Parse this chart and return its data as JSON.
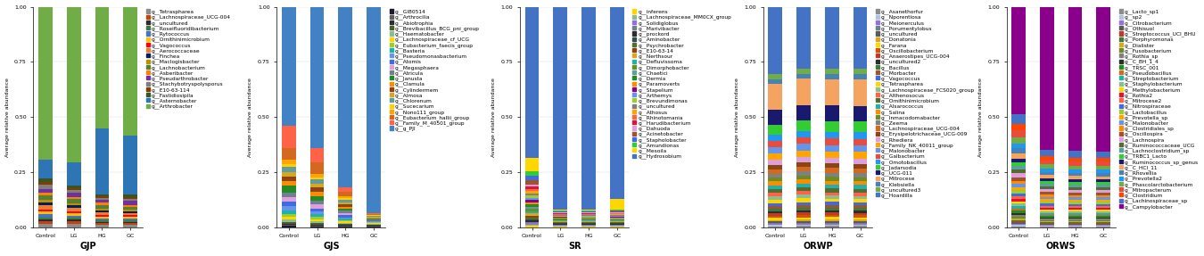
{
  "figsize": [
    13.5,
    2.87
  ],
  "dpi": 100,
  "bar_width": 0.5,
  "ylim": [
    0.0,
    1.0
  ],
  "yticks": [
    0.0,
    0.25,
    0.5,
    0.75,
    1.0
  ],
  "legend_fontsize": 4.2,
  "title_fontsize": 7,
  "label_fontsize": 4.5,
  "tick_fontsize": 4.5,
  "panels": [
    {
      "title": "GJP",
      "categories": [
        "Control",
        "LG",
        "HG",
        "GC"
      ],
      "legend_labels": [
        "g__Tetraspharea",
        "g__Lachnospiraceae_UCG-004",
        "g__uncultured",
        "g__Roseifluoridibacterium",
        "g__Rytococcus",
        "g__Ornithinimicrobium",
        "g__Vagococcus",
        "g__Aerococcaceae",
        "g__Finchea",
        "g__Maclogisbacter",
        "g__Lachnobacterium",
        "g__Asberibacter",
        "g__Pseudarthrobacter",
        "g__Stachybotryspolysporus",
        "g__E10-63-114",
        "g__Fastidiosipila",
        "g__Asternobacter",
        "g__Arthrobacter"
      ],
      "colors": [
        "#8c8c8c",
        "#c1440e",
        "#2d2d2d",
        "#3d7a3d",
        "#4472c4",
        "#ffc000",
        "#ff0000",
        "#ed7d31",
        "#002060",
        "#bf8f00",
        "#538135",
        "#ff8000",
        "#7030a0",
        "#7f7f7f",
        "#833c00",
        "#375623",
        "#2e75b6",
        "#70ad47"
      ],
      "data": [
        [
          0.015,
          0.015,
          0.01,
          0.01
        ],
        [
          0.01,
          0.01,
          0.008,
          0.008
        ],
        [
          0.008,
          0.008,
          0.006,
          0.006
        ],
        [
          0.008,
          0.008,
          0.006,
          0.006
        ],
        [
          0.015,
          0.01,
          0.008,
          0.008
        ],
        [
          0.01,
          0.01,
          0.008,
          0.008
        ],
        [
          0.01,
          0.01,
          0.01,
          0.008
        ],
        [
          0.02,
          0.015,
          0.012,
          0.01
        ],
        [
          0.01,
          0.01,
          0.008,
          0.008
        ],
        [
          0.012,
          0.01,
          0.01,
          0.008
        ],
        [
          0.02,
          0.018,
          0.015,
          0.01
        ],
        [
          0.012,
          0.01,
          0.01,
          0.01
        ],
        [
          0.015,
          0.018,
          0.012,
          0.018
        ],
        [
          0.018,
          0.012,
          0.01,
          0.01
        ],
        [
          0.01,
          0.01,
          0.008,
          0.008
        ],
        [
          0.018,
          0.012,
          0.01,
          0.01
        ],
        [
          0.08,
          0.1,
          0.3,
          0.27
        ],
        [
          0.659,
          0.693,
          0.557,
          0.582
        ]
      ]
    },
    {
      "title": "GJS",
      "categories": [
        "Control",
        "LG",
        "HG",
        "GC"
      ],
      "legend_labels": [
        "g__GI80514",
        "g__Arthrocilia",
        "g__Abiotrophia",
        "g__Brevibacillus_BCG_pni_group",
        "g__Haematobacter",
        "g__Lachnospiraceae_cf_UCG",
        "g__Eubacterium_faecis_group",
        "g__Basteria",
        "g__Pseudomonasbacterium",
        "g__Atomis",
        "g__Megasphaera",
        "g__Atricula",
        "g__Janusta",
        "g__Clamula",
        "g__Cylindermem",
        "g__Almosa",
        "g__Chlorenum",
        "g__Sucecarium",
        "g__Nono111_group",
        "g__Eubacterium_hallii_group",
        "g__Family_M_40501_group",
        "g__g_PJI"
      ],
      "colors": [
        "#1a1a2e",
        "#5f5f5f",
        "#2d2d2d",
        "#4b5e2e",
        "#8fbc8f",
        "#ffd700",
        "#9acd32",
        "#20b2aa",
        "#6495ed",
        "#4169e1",
        "#dda0dd",
        "#708090",
        "#228b22",
        "#ff8c00",
        "#8b4513",
        "#daa520",
        "#5f9ea0",
        "#ffd000",
        "#ffa500",
        "#d2691e",
        "#ff6347",
        "#4282c4"
      ],
      "data": [
        [
          0.005,
          0.004,
          0.004,
          0.003
        ],
        [
          0.005,
          0.004,
          0.004,
          0.003
        ],
        [
          0.005,
          0.004,
          0.003,
          0.003
        ],
        [
          0.008,
          0.006,
          0.005,
          0.003
        ],
        [
          0.01,
          0.006,
          0.005,
          0.003
        ],
        [
          0.012,
          0.01,
          0.006,
          0.003
        ],
        [
          0.012,
          0.01,
          0.006,
          0.003
        ],
        [
          0.018,
          0.012,
          0.006,
          0.003
        ],
        [
          0.018,
          0.012,
          0.006,
          0.003
        ],
        [
          0.02,
          0.012,
          0.01,
          0.003
        ],
        [
          0.02,
          0.018,
          0.01,
          0.003
        ],
        [
          0.02,
          0.018,
          0.01,
          0.003
        ],
        [
          0.03,
          0.02,
          0.01,
          0.003
        ],
        [
          0.02,
          0.018,
          0.01,
          0.003
        ],
        [
          0.02,
          0.018,
          0.01,
          0.003
        ],
        [
          0.02,
          0.018,
          0.01,
          0.003
        ],
        [
          0.025,
          0.018,
          0.01,
          0.003
        ],
        [
          0.012,
          0.01,
          0.008,
          0.003
        ],
        [
          0.02,
          0.015,
          0.01,
          0.003
        ],
        [
          0.05,
          0.05,
          0.02,
          0.003
        ],
        [
          0.1,
          0.06,
          0.02,
          0.003
        ],
        [
          0.53,
          0.617,
          0.837,
          0.94
        ]
      ]
    },
    {
      "title": "SR",
      "categories": [
        "Control",
        "LG",
        "HG",
        "GC"
      ],
      "legend_labels": [
        "g__inferens",
        "g__Lachnospiraceae_MM0CX_group",
        "g__Solidiglobus",
        "g__Marivibacter",
        "g__prockord",
        "g__Aminobacter",
        "g__Psychrobacter",
        "g__E10-63-14",
        "g__Nerthsour",
        "g__Defluvissoma",
        "g__Dimorphobacter",
        "g__Chaetici",
        "g__Dermia",
        "g__Paramoverts",
        "g__Stapelium",
        "g__Arthemys",
        "g__Brevundimonas",
        "g__uncultured",
        "g__Athosus",
        "g__Rhinotomania",
        "g__Harudibacterium",
        "g__Dahuoda",
        "g__Acinetobacter",
        "g__Stapholobacter",
        "g__Amundionas",
        "g__Mesoila",
        "g__Hydrosobium"
      ],
      "colors": [
        "#ffd700",
        "#8fbc8f",
        "#9370db",
        "#708090",
        "#2d2d2d",
        "#2f4f4f",
        "#556b2f",
        "#8b4513",
        "#daa520",
        "#20b2aa",
        "#6b8e23",
        "#5f9ea0",
        "#228b22",
        "#ff8c00",
        "#8b008b",
        "#6495ed",
        "#9acd32",
        "#808080",
        "#ffa500",
        "#ff6347",
        "#dc143c",
        "#dda0dd",
        "#a0522d",
        "#4169e1",
        "#32cd32",
        "#ffd700",
        "#4472c4"
      ],
      "data": [
        [
          0.006,
          0.003,
          0.003,
          0.003
        ],
        [
          0.006,
          0.003,
          0.003,
          0.003
        ],
        [
          0.006,
          0.003,
          0.003,
          0.003
        ],
        [
          0.006,
          0.003,
          0.003,
          0.003
        ],
        [
          0.006,
          0.003,
          0.003,
          0.003
        ],
        [
          0.006,
          0.003,
          0.003,
          0.003
        ],
        [
          0.006,
          0.003,
          0.003,
          0.003
        ],
        [
          0.01,
          0.003,
          0.003,
          0.003
        ],
        [
          0.01,
          0.003,
          0.003,
          0.003
        ],
        [
          0.01,
          0.003,
          0.003,
          0.003
        ],
        [
          0.01,
          0.003,
          0.003,
          0.003
        ],
        [
          0.01,
          0.003,
          0.003,
          0.003
        ],
        [
          0.01,
          0.003,
          0.003,
          0.003
        ],
        [
          0.01,
          0.003,
          0.003,
          0.003
        ],
        [
          0.01,
          0.003,
          0.003,
          0.003
        ],
        [
          0.01,
          0.003,
          0.003,
          0.003
        ],
        [
          0.01,
          0.003,
          0.003,
          0.003
        ],
        [
          0.01,
          0.003,
          0.003,
          0.003
        ],
        [
          0.01,
          0.003,
          0.003,
          0.003
        ],
        [
          0.01,
          0.003,
          0.003,
          0.003
        ],
        [
          0.01,
          0.003,
          0.003,
          0.003
        ],
        [
          0.01,
          0.003,
          0.003,
          0.003
        ],
        [
          0.02,
          0.003,
          0.003,
          0.003
        ],
        [
          0.02,
          0.003,
          0.003,
          0.003
        ],
        [
          0.02,
          0.003,
          0.003,
          0.003
        ],
        [
          0.06,
          0.003,
          0.003,
          0.05
        ],
        [
          0.68,
          0.92,
          0.926,
          0.843
        ]
      ]
    },
    {
      "title": "ORWP",
      "categories": [
        "Control",
        "LG",
        "HG",
        "GC"
      ],
      "legend_labels": [
        "g__Asanethorfur",
        "g__Nporentiosa",
        "g__Meionerculus",
        "g__Porumentylobus",
        "g__uncultured",
        "g__Donatonia",
        "g__Farana",
        "g__Oscillobacterium",
        "g__Anaerostipes_UCG-004",
        "g__uncultured2",
        "g__Bacillus",
        "g__Morbacter",
        "g__Vagococcus",
        "g__Tetraspharea",
        "g__Lachnospiraceae_FCS020_group",
        "g__Althenosocus",
        "g__Ornithinimicrobium",
        "g__Alsarococcus",
        "g__Salina",
        "g__Inmacodomabacter",
        "g__Zeema",
        "g__Lachnospiraceae_UCG-004",
        "g__Erysipelotrichaceae_UCG-009",
        "g__Rhediera",
        "g__Family_NK_40011_group",
        "g__Malonobacter",
        "g__Galbacterium",
        "g__Omotobacillus",
        "g__Jadarsodia",
        "g__UCG-011",
        "g__Mitrocese",
        "g__Klebsiella",
        "g__uncultured3",
        "g__Hoardilla"
      ],
      "colors": [
        "#8c8c8c",
        "#b0c4de",
        "#9370db",
        "#708090",
        "#5a5a5a",
        "#daa520",
        "#ffd700",
        "#d35400",
        "#c0392b",
        "#2d2d2d",
        "#3d7a3d",
        "#a0522d",
        "#4169e1",
        "#ffd700",
        "#8fbc8f",
        "#ff6347",
        "#556b2f",
        "#20b2aa",
        "#ff8c00",
        "#6b8e23",
        "#808080",
        "#d2691e",
        "#8b4513",
        "#dda0dd",
        "#ffa500",
        "#6495ed",
        "#e74c3c",
        "#2196f3",
        "#32cd32",
        "#191970",
        "#f4a460",
        "#4682b4",
        "#70ad47",
        "#4472c4"
      ],
      "data": [
        [
          0.004,
          0.004,
          0.004,
          0.004
        ],
        [
          0.004,
          0.004,
          0.004,
          0.004
        ],
        [
          0.004,
          0.004,
          0.004,
          0.004
        ],
        [
          0.004,
          0.004,
          0.004,
          0.004
        ],
        [
          0.006,
          0.006,
          0.006,
          0.006
        ],
        [
          0.006,
          0.008,
          0.008,
          0.006
        ],
        [
          0.008,
          0.008,
          0.008,
          0.008
        ],
        [
          0.01,
          0.01,
          0.01,
          0.01
        ],
        [
          0.008,
          0.008,
          0.008,
          0.008
        ],
        [
          0.008,
          0.008,
          0.008,
          0.008
        ],
        [
          0.01,
          0.01,
          0.01,
          0.01
        ],
        [
          0.01,
          0.01,
          0.01,
          0.01
        ],
        [
          0.012,
          0.012,
          0.012,
          0.012
        ],
        [
          0.015,
          0.015,
          0.012,
          0.012
        ],
        [
          0.015,
          0.015,
          0.012,
          0.012
        ],
        [
          0.012,
          0.012,
          0.012,
          0.012
        ],
        [
          0.015,
          0.015,
          0.015,
          0.015
        ],
        [
          0.015,
          0.015,
          0.015,
          0.015
        ],
        [
          0.015,
          0.015,
          0.015,
          0.015
        ],
        [
          0.015,
          0.015,
          0.015,
          0.015
        ],
        [
          0.015,
          0.015,
          0.015,
          0.015
        ],
        [
          0.018,
          0.018,
          0.018,
          0.018
        ],
        [
          0.018,
          0.018,
          0.018,
          0.018
        ],
        [
          0.02,
          0.02,
          0.02,
          0.02
        ],
        [
          0.025,
          0.025,
          0.025,
          0.025
        ],
        [
          0.025,
          0.025,
          0.025,
          0.025
        ],
        [
          0.025,
          0.025,
          0.025,
          0.025
        ],
        [
          0.025,
          0.025,
          0.025,
          0.025
        ],
        [
          0.04,
          0.04,
          0.04,
          0.04
        ],
        [
          0.06,
          0.06,
          0.06,
          0.06
        ],
        [
          0.1,
          0.1,
          0.1,
          0.1
        ],
        [
          0.02,
          0.02,
          0.02,
          0.02
        ],
        [
          0.02,
          0.02,
          0.02,
          0.02
        ],
        [
          0.267,
          0.237,
          0.237,
          0.237
        ]
      ]
    },
    {
      "title": "ORWS",
      "categories": [
        "Control",
        "LG",
        "HG",
        "GC"
      ],
      "legend_labels": [
        "g__Lacto_sp1",
        "g__sp2",
        "g__Citrobacterium",
        "g__Othisuol",
        "g__Streptococcus_UCI_BHU",
        "g__Porphyromonas",
        "g__Dialister",
        "g__Fusobacterium",
        "g__Rothia_sp",
        "g__C_BH_1_4",
        "g__TRSC_001",
        "g__Pseudobacillus",
        "g__Streptobacterium",
        "g__Staphylobacterium",
        "g__Methylobacterium",
        "g__Rothia2",
        "g__Mitrocese2",
        "g__Nitrospiraceae",
        "g__Lactobacillus",
        "g__Prevotella_sp",
        "g__Malonobacter",
        "g__Clostridiales_sp",
        "g__Oscillospira",
        "g__Lachnospira",
        "g__Ruminococcaceae_UCG",
        "g__Lachnoclostridium_sp",
        "g__TRBC1_Lacto",
        "g__Ruminococcus_sp_genus",
        "g__C_HCI_11",
        "g__Rhovellia",
        "g__Prevotella2",
        "g__Phascolarctobacterium",
        "g__Mitropacterum",
        "g__Clostridium",
        "g__Lachinospiraceae_sp",
        "g__Campylobacter"
      ],
      "colors": [
        "#8c8c8c",
        "#b0c4de",
        "#9370db",
        "#5a5a5a",
        "#c0392b",
        "#3d7a3d",
        "#daa520",
        "#6b8e23",
        "#808080",
        "#2d2d2d",
        "#228b22",
        "#d2691e",
        "#20b2aa",
        "#8fbc8f",
        "#ffd700",
        "#dc143c",
        "#ff6347",
        "#4169e1",
        "#9acd32",
        "#ffa500",
        "#6495ed",
        "#ff8c00",
        "#a0522d",
        "#dda0dd",
        "#556b2f",
        "#5f9ea0",
        "#32cd32",
        "#191970",
        "#f4a460",
        "#4682b4",
        "#2196f3",
        "#70ad47",
        "#e74c3c",
        "#ff4500",
        "#4472c4",
        "#8b008b"
      ],
      "data": [
        [
          0.004,
          0.003,
          0.003,
          0.003
        ],
        [
          0.004,
          0.003,
          0.003,
          0.003
        ],
        [
          0.004,
          0.003,
          0.003,
          0.003
        ],
        [
          0.004,
          0.003,
          0.003,
          0.003
        ],
        [
          0.005,
          0.004,
          0.004,
          0.004
        ],
        [
          0.006,
          0.005,
          0.005,
          0.005
        ],
        [
          0.006,
          0.005,
          0.005,
          0.005
        ],
        [
          0.008,
          0.006,
          0.006,
          0.006
        ],
        [
          0.008,
          0.006,
          0.006,
          0.006
        ],
        [
          0.008,
          0.006,
          0.006,
          0.006
        ],
        [
          0.008,
          0.006,
          0.006,
          0.006
        ],
        [
          0.008,
          0.006,
          0.006,
          0.006
        ],
        [
          0.01,
          0.008,
          0.008,
          0.008
        ],
        [
          0.01,
          0.008,
          0.008,
          0.008
        ],
        [
          0.01,
          0.008,
          0.008,
          0.008
        ],
        [
          0.01,
          0.008,
          0.008,
          0.008
        ],
        [
          0.01,
          0.008,
          0.008,
          0.008
        ],
        [
          0.012,
          0.01,
          0.01,
          0.01
        ],
        [
          0.012,
          0.01,
          0.01,
          0.01
        ],
        [
          0.012,
          0.01,
          0.01,
          0.01
        ],
        [
          0.012,
          0.01,
          0.01,
          0.01
        ],
        [
          0.012,
          0.01,
          0.01,
          0.01
        ],
        [
          0.015,
          0.012,
          0.012,
          0.012
        ],
        [
          0.015,
          0.012,
          0.012,
          0.012
        ],
        [
          0.015,
          0.012,
          0.012,
          0.012
        ],
        [
          0.015,
          0.012,
          0.012,
          0.012
        ],
        [
          0.015,
          0.012,
          0.012,
          0.012
        ],
        [
          0.015,
          0.012,
          0.012,
          0.012
        ],
        [
          0.02,
          0.015,
          0.015,
          0.015
        ],
        [
          0.02,
          0.015,
          0.015,
          0.015
        ],
        [
          0.02,
          0.015,
          0.015,
          0.015
        ],
        [
          0.025,
          0.018,
          0.018,
          0.018
        ],
        [
          0.025,
          0.018,
          0.018,
          0.018
        ],
        [
          0.025,
          0.018,
          0.018,
          0.018
        ],
        [
          0.04,
          0.03,
          0.03,
          0.03
        ],
        [
          0.427,
          0.642,
          0.659,
          0.662
        ]
      ]
    }
  ]
}
